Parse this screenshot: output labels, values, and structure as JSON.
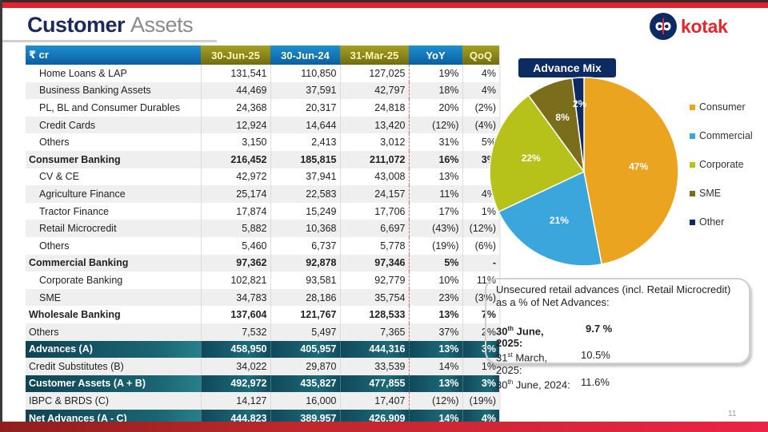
{
  "title": {
    "bold": "Customer",
    "light": "Assets"
  },
  "logo": {
    "text": "kotak",
    "icon": "kotak-infinity-logo-icon"
  },
  "table": {
    "headers": [
      "₹ cr",
      "30-Jun-25",
      "30-Jun-24",
      "31-Mar-25",
      "YoY",
      "QoQ"
    ],
    "rows": [
      {
        "label": "Home Loans & LAP",
        "values": [
          "131,541",
          "110,850",
          "127,025",
          "19%",
          "4%"
        ],
        "style": "indent"
      },
      {
        "label": "Business Banking Assets",
        "values": [
          "44,469",
          "37,591",
          "42,797",
          "18%",
          "4%"
        ],
        "style": "indent"
      },
      {
        "label": "PL, BL and Consumer Durables",
        "values": [
          "24,368",
          "20,317",
          "24,818",
          "20%",
          "(2%)"
        ],
        "style": "indent"
      },
      {
        "label": "Credit Cards",
        "values": [
          "12,924",
          "14,644",
          "13,420",
          "(12%)",
          "(4%)"
        ],
        "style": "indent"
      },
      {
        "label": "Others",
        "values": [
          "3,150",
          "2,413",
          "3,012",
          "31%",
          "5%"
        ],
        "style": "indent"
      },
      {
        "label": "Consumer Banking",
        "values": [
          "216,452",
          "185,815",
          "211,072",
          "16%",
          "3%"
        ],
        "style": "bold"
      },
      {
        "label": "CV & CE",
        "values": [
          "42,972",
          "37,941",
          "43,008",
          "13%",
          "-"
        ],
        "style": "indent"
      },
      {
        "label": "Agriculture Finance",
        "values": [
          "25,174",
          "22,583",
          "24,157",
          "11%",
          "4%"
        ],
        "style": "indent"
      },
      {
        "label": "Tractor Finance",
        "values": [
          "17,874",
          "15,249",
          "17,706",
          "17%",
          "1%"
        ],
        "style": "indent"
      },
      {
        "label": "Retail Microcredit",
        "values": [
          "5,882",
          "10,368",
          "6,697",
          "(43%)",
          "(12%)"
        ],
        "style": "indent"
      },
      {
        "label": "Others",
        "values": [
          "5,460",
          "6,737",
          "5,778",
          "(19%)",
          "(6%)"
        ],
        "style": "indent"
      },
      {
        "label": "Commercial Banking",
        "values": [
          "97,362",
          "92,878",
          "97,346",
          "5%",
          "-"
        ],
        "style": "bold"
      },
      {
        "label": "Corporate Banking",
        "values": [
          "102,821",
          "93,581",
          "92,779",
          "10%",
          "11%"
        ],
        "style": "indent"
      },
      {
        "label": "SME",
        "values": [
          "34,783",
          "28,186",
          "35,754",
          "23%",
          "(3%)"
        ],
        "style": "indent"
      },
      {
        "label": "Wholesale Banking",
        "values": [
          "137,604",
          "121,767",
          "128,533",
          "13%",
          "7%"
        ],
        "style": "bold"
      },
      {
        "label": "Others",
        "values": [
          "7,532",
          "5,497",
          "7,365",
          "37%",
          "2%"
        ],
        "style": "plain"
      },
      {
        "label": "Advances (A)",
        "values": [
          "458,950",
          "405,957",
          "444,316",
          "13%",
          "3%"
        ],
        "style": "dark"
      },
      {
        "label": "Credit Substitutes (B)",
        "values": [
          "34,022",
          "29,870",
          "33,539",
          "14%",
          "1%"
        ],
        "style": "plain"
      },
      {
        "label": "Customer Assets (A + B)",
        "values": [
          "492,972",
          "435,827",
          "477,855",
          "13%",
          "3%"
        ],
        "style": "dark"
      },
      {
        "label": "IBPC & BRDS (C)",
        "values": [
          "14,127",
          "16,000",
          "17,407",
          "(12%)",
          "(19%)"
        ],
        "style": "plain"
      },
      {
        "label": "Net Advances (A - C)",
        "values": [
          "444,823",
          "389,957",
          "426,909",
          "14%",
          "4%"
        ],
        "style": "dark"
      }
    ]
  },
  "chart_data": {
    "type": "pie",
    "title": "Advance Mix",
    "categories": [
      "Consumer",
      "Commercial",
      "Corporate",
      "SME",
      "Other"
    ],
    "values": [
      47,
      21,
      22,
      8,
      2
    ],
    "labels": [
      "47%",
      "21%",
      "22%",
      "8%",
      "2%"
    ],
    "colors": [
      "#eba41f",
      "#3aa6dc",
      "#b6c21a",
      "#7a6d1c",
      "#0d2b63"
    ],
    "legend": "right"
  },
  "note": {
    "text": "Unsecured retail advances (incl. Retail Microcredit) as a % of Net Advances:",
    "items": [
      {
        "day": "30",
        "sup": "th",
        "rest": " June, 2025:",
        "value": "9.7 %",
        "bold": true
      },
      {
        "day": "31",
        "sup": "st",
        "rest": " March, 2025:",
        "value": "10.5%",
        "bold": false
      },
      {
        "day": "30",
        "sup": "th",
        "rest": " June, 2024:",
        "value": "11.6%",
        "bold": false
      }
    ]
  },
  "page_number": "11"
}
